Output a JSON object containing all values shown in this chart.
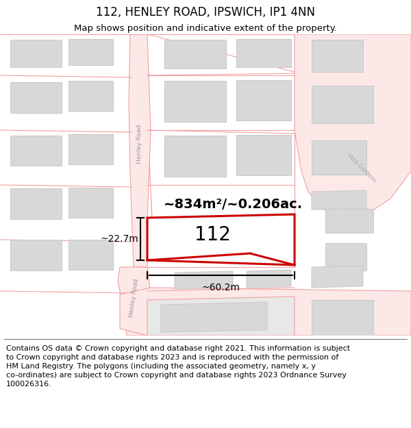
{
  "title": "112, HENLEY ROAD, IPSWICH, IP1 4NN",
  "subtitle": "Map shows position and indicative extent of the property.",
  "footer": "Contains OS data © Crown copyright and database right 2021. This information is subject\nto Crown copyright and database rights 2023 and is reproduced with the permission of\nHM Land Registry. The polygons (including the associated geometry, namely x, y\nco-ordinates) are subject to Crown copyright and database rights 2023 Ordnance Survey\n100026316.",
  "map_bg": "#ffffff",
  "line_color": "#f0a0a0",
  "building_fill": "#d8d8d8",
  "building_outline": "#c8c8c8",
  "highlight_fill": "#ffffff",
  "highlight_outline": "#cc0000",
  "road_label_color": "#aaaaaa",
  "title_fontsize": 12,
  "subtitle_fontsize": 9.5,
  "footer_fontsize": 8,
  "label_112": "112",
  "area_label": "~834m²/~0.206ac.",
  "width_label": "~60.2m",
  "height_label": "~22.7m"
}
